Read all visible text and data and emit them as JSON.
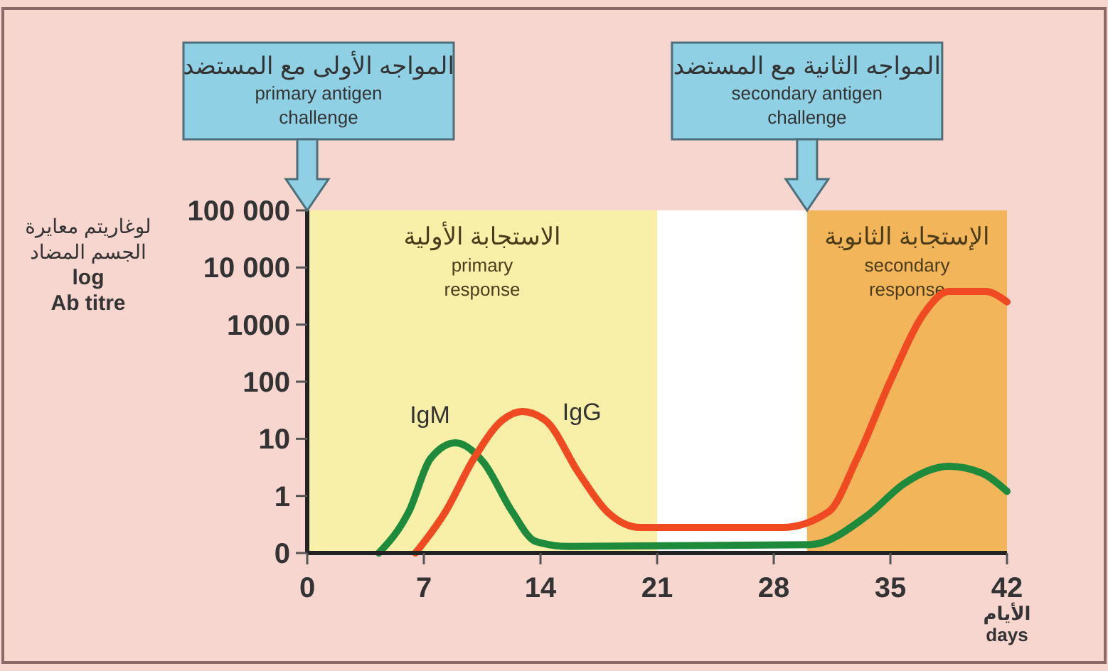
{
  "chart_data": {
    "type": "line",
    "ylabel": "لوغاريتم معايرة\nالجسم المضاد\nlog\nAb titre",
    "xlabel": "الأيام\ndays",
    "log": "y",
    "grid": false,
    "marker": "none",
    "line_style": "solid",
    "xlim": [
      0,
      42
    ],
    "xticks": [
      0,
      7,
      14,
      21,
      28,
      35,
      42
    ],
    "ylim": [
      0.1,
      100000
    ],
    "yticks": [
      {
        "value": 0.1,
        "label": "0"
      },
      1,
      10,
      100,
      1000,
      {
        "value": 10000,
        "label": "10 000"
      },
      {
        "value": 100000,
        "label": "100 000"
      }
    ],
    "series": [
      {
        "name": "IgM",
        "color": "#1e8a3c",
        "x": [
          4.3,
          6.1,
          7.4,
          8.9,
          10.6,
          12.3,
          13.7,
          15.7,
          30.2,
          33.6,
          35.9,
          38.5,
          40.5,
          42
        ],
        "values": [
          0.1,
          0.53,
          4.5,
          8.5,
          3.8,
          0.53,
          0.16,
          0.13,
          0.14,
          0.45,
          1.7,
          3.3,
          2.5,
          1.2
        ]
      },
      {
        "name": "IgG",
        "color": "#f04a23",
        "x": [
          6.5,
          8.3,
          10,
          11.7,
          12.9,
          14.3,
          16.3,
          18,
          20,
          28.5,
          31.3,
          33,
          35.1,
          37.1,
          38.5,
          40.7,
          42
        ],
        "values": [
          0.1,
          0.53,
          4.5,
          21,
          30,
          21,
          2.5,
          0.53,
          0.28,
          0.28,
          0.53,
          4.5,
          120,
          1700,
          3800,
          3800,
          2500
        ]
      }
    ],
    "bands": [
      {
        "axis": "x",
        "from": 0,
        "to": 21,
        "label": "الاستجابة الأولية\nprimary\nresponse",
        "color": "#f8f0a8"
      },
      {
        "axis": "x",
        "from": 30,
        "to": 42,
        "label": "الإستجابة الثانوية\nsecondary\nresponse",
        "color": "#f2b55a"
      }
    ],
    "annotations": [
      "المواجه الأولى مع المستضد\nprimary antigen\nchallenge",
      "المواجه الثانية مع المستضد\nsecondary antigen\nchallenge"
    ]
  }
}
